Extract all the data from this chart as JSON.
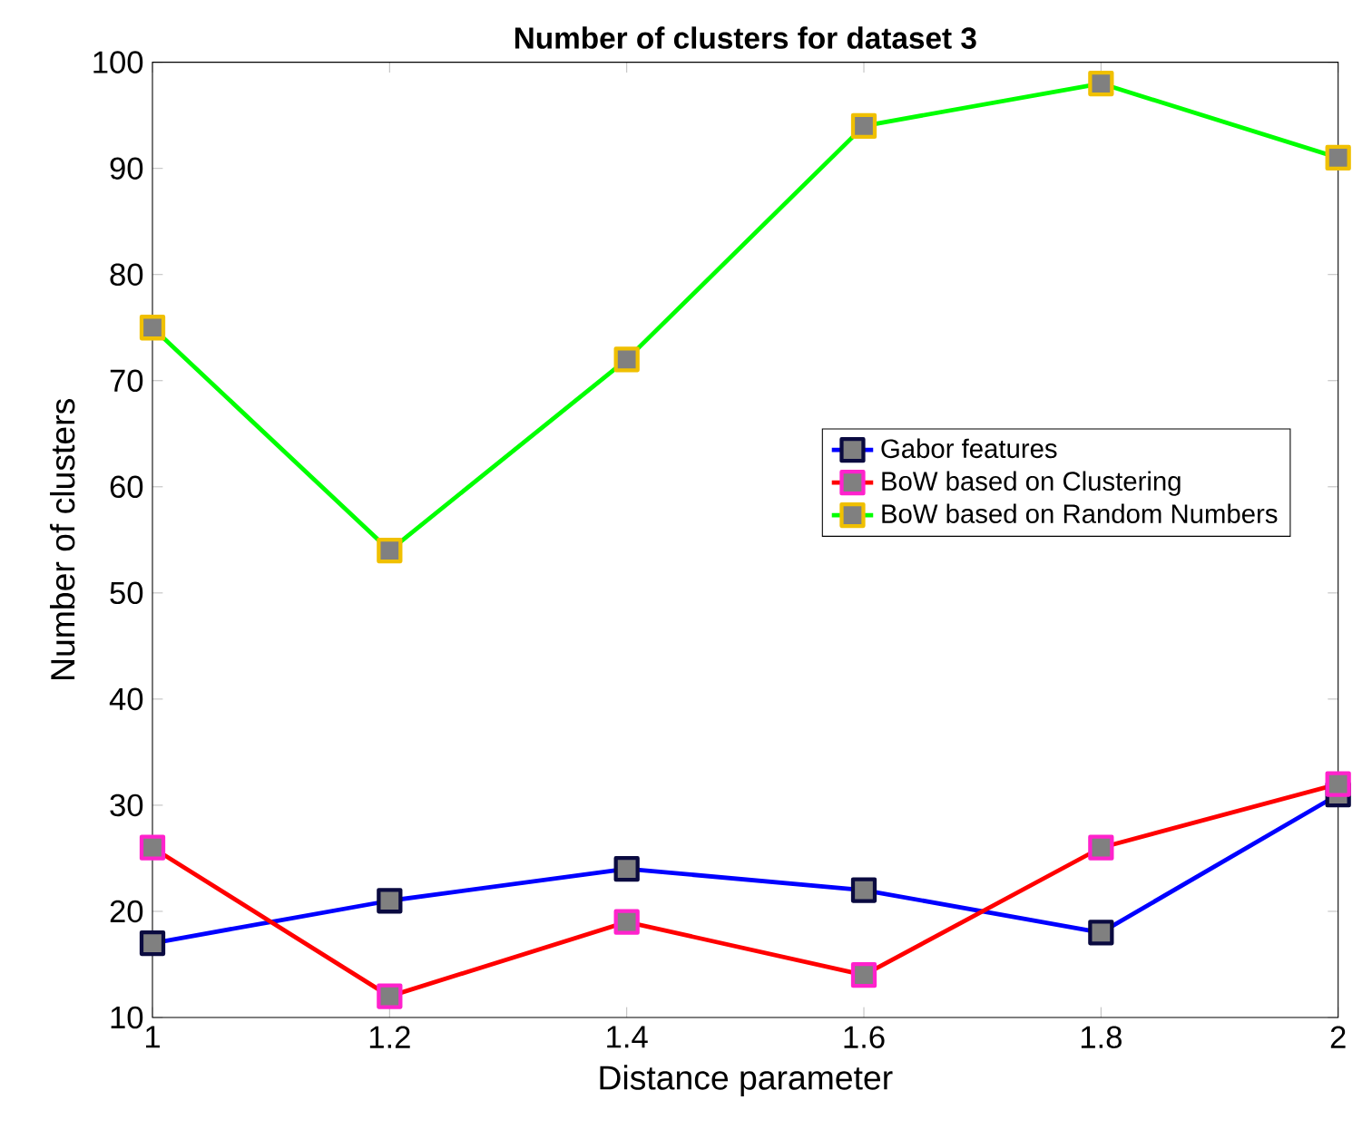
{
  "chart_data": {
    "type": "line",
    "title": "Number of clusters for dataset 3",
    "xlabel": "Distance parameter",
    "ylabel": "Number of clusters",
    "x": [
      1,
      1.2,
      1.4,
      1.6,
      1.8,
      2
    ],
    "series": [
      {
        "name": "Gabor features",
        "color": "#0000ff",
        "values": [
          17,
          21,
          24,
          22,
          18,
          31
        ]
      },
      {
        "name": "BoW based on Clustering",
        "color": "#ff0000",
        "values": [
          26,
          12,
          19,
          14,
          26,
          32
        ]
      },
      {
        "name": "BoW based on Random Numbers",
        "color": "#00ff00",
        "values": [
          75,
          54,
          72,
          94,
          98,
          91
        ]
      }
    ],
    "xlim": [
      1,
      2
    ],
    "xticks": [
      1,
      1.2,
      1.4,
      1.6,
      1.8,
      2
    ],
    "ylim": [
      10,
      100
    ],
    "yticks": [
      10,
      20,
      30,
      40,
      50,
      60,
      70,
      80,
      90,
      100
    ],
    "marker": "square",
    "line_style": "solid",
    "grid": false,
    "legend": "right"
  }
}
